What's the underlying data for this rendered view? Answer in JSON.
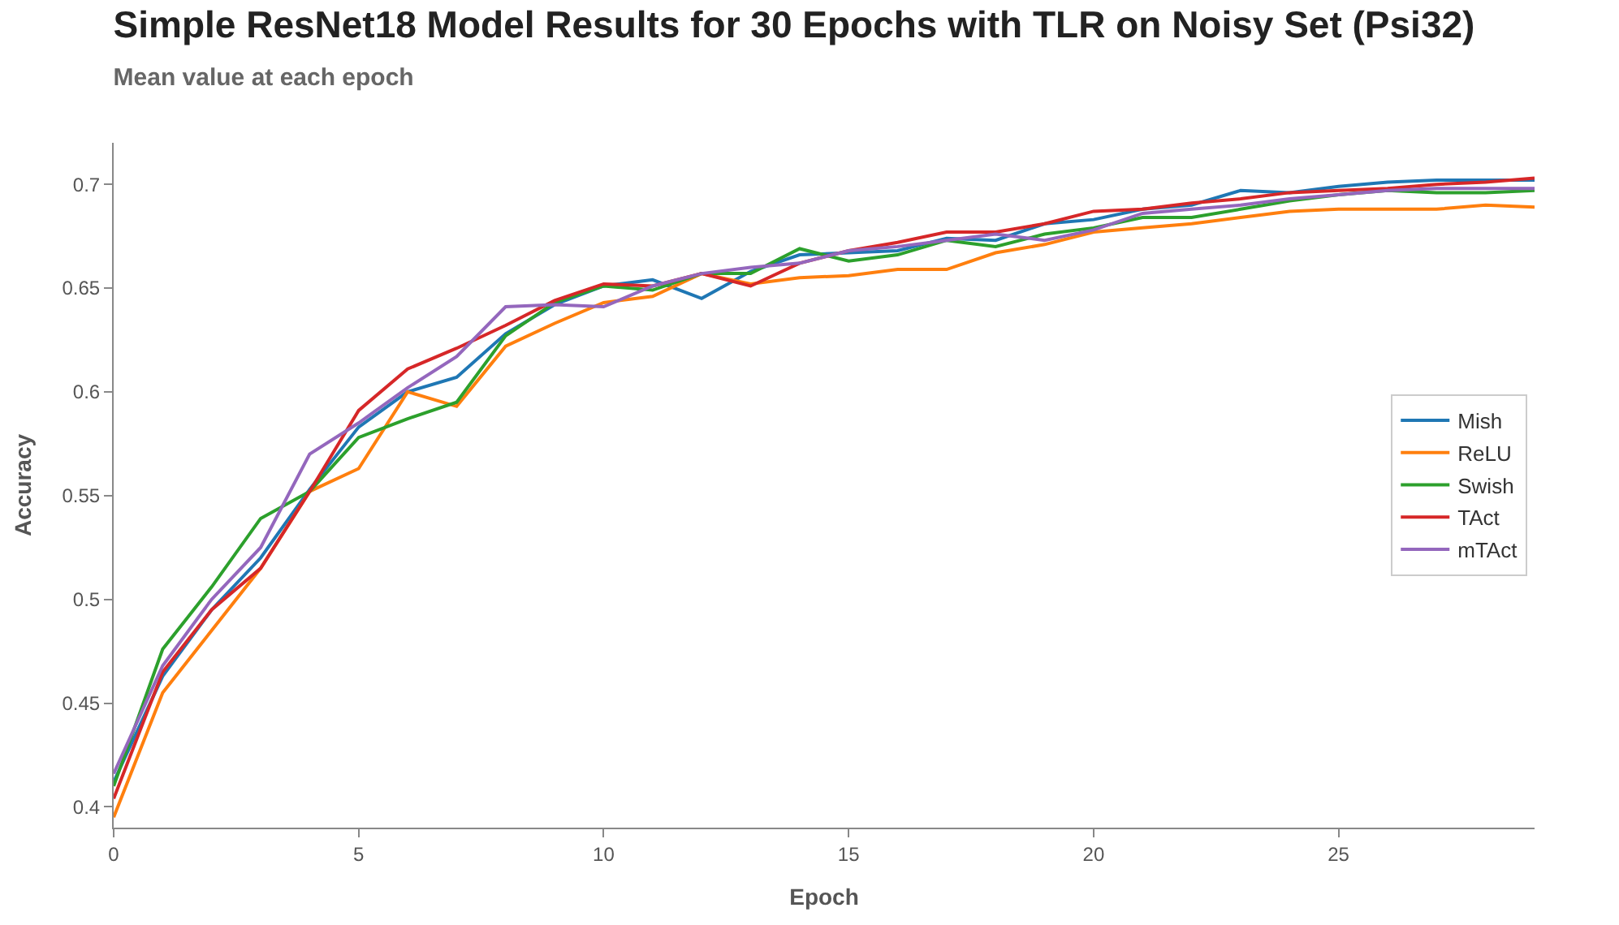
{
  "chart_data": {
    "type": "line",
    "title": "Simple ResNet18 Model Results for 30 Epochs with TLR on Noisy Set (Psi32)",
    "subtitle": "Mean value at each epoch",
    "xlabel": "Epoch",
    "ylabel": "Accuracy",
    "x": [
      0,
      1,
      2,
      3,
      4,
      5,
      6,
      7,
      8,
      9,
      10,
      11,
      12,
      13,
      14,
      15,
      16,
      17,
      18,
      19,
      20,
      21,
      22,
      23,
      24,
      25,
      26,
      27,
      28,
      29
    ],
    "series": [
      {
        "name": "Mish",
        "color": "#1f77b4",
        "values": [
          0.412,
          0.463,
          0.495,
          0.52,
          0.553,
          0.583,
          0.6,
          0.607,
          0.628,
          0.642,
          0.651,
          0.654,
          0.645,
          0.658,
          0.666,
          0.667,
          0.668,
          0.674,
          0.673,
          0.681,
          0.683,
          0.688,
          0.69,
          0.697,
          0.696,
          0.699,
          0.701,
          0.702,
          0.702,
          0.702
        ]
      },
      {
        "name": "ReLU",
        "color": "#ff7f0e",
        "values": [
          0.395,
          0.455,
          0.485,
          0.515,
          0.552,
          0.563,
          0.6,
          0.593,
          0.622,
          0.633,
          0.643,
          0.646,
          0.657,
          0.652,
          0.655,
          0.656,
          0.659,
          0.659,
          0.667,
          0.671,
          0.677,
          0.679,
          0.681,
          0.684,
          0.687,
          0.688,
          0.688,
          0.688,
          0.69,
          0.689
        ]
      },
      {
        "name": "Swish",
        "color": "#2ca02c",
        "values": [
          0.41,
          0.476,
          0.506,
          0.539,
          0.552,
          0.578,
          0.587,
          0.595,
          0.627,
          0.643,
          0.651,
          0.649,
          0.657,
          0.657,
          0.669,
          0.663,
          0.666,
          0.673,
          0.67,
          0.676,
          0.679,
          0.684,
          0.684,
          0.688,
          0.692,
          0.695,
          0.697,
          0.696,
          0.696,
          0.697
        ]
      },
      {
        "name": "TAct",
        "color": "#d62728",
        "values": [
          0.404,
          0.465,
          0.495,
          0.515,
          0.552,
          0.591,
          0.611,
          0.621,
          0.632,
          0.644,
          0.652,
          0.651,
          0.657,
          0.651,
          0.662,
          0.668,
          0.672,
          0.677,
          0.677,
          0.681,
          0.687,
          0.688,
          0.691,
          0.693,
          0.696,
          0.697,
          0.698,
          0.7,
          0.701,
          0.703
        ]
      },
      {
        "name": "mTAct",
        "color": "#9467bd",
        "values": [
          0.416,
          0.468,
          0.5,
          0.525,
          0.57,
          0.585,
          0.602,
          0.617,
          0.641,
          0.642,
          0.641,
          0.651,
          0.657,
          0.66,
          0.662,
          0.668,
          0.67,
          0.673,
          0.676,
          0.673,
          0.678,
          0.686,
          0.688,
          0.69,
          0.693,
          0.695,
          0.697,
          0.698,
          0.698,
          0.698
        ]
      }
    ],
    "xlim": [
      0,
      29
    ],
    "xticks": [
      0,
      5,
      10,
      15,
      20,
      25
    ],
    "ylim": [
      0.39,
      0.72
    ],
    "yticks": [
      0.4,
      0.45,
      0.5,
      0.55,
      0.6,
      0.65,
      0.7
    ],
    "legend": "right",
    "marker": "none",
    "line_style": "solid"
  }
}
